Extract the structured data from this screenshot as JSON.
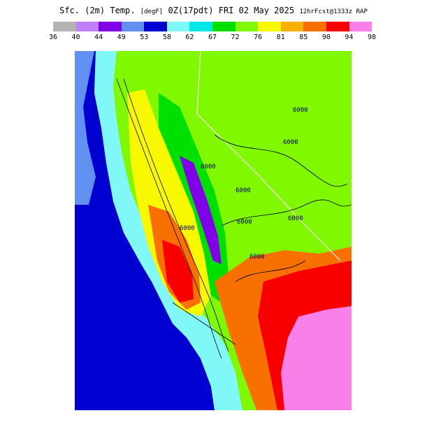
{
  "header": {
    "title": "Sfc. (2m) Temp.",
    "units": "[degF]",
    "valid": "0Z(17pdt) FRI 02 May 2025",
    "forecast": "12hrFcst@1333z RAP"
  },
  "legend": {
    "ticks": [
      "36",
      "40",
      "44",
      "49",
      "53",
      "58",
      "62",
      "67",
      "72",
      "76",
      "81",
      "85",
      "90",
      "94",
      "98"
    ],
    "colors": [
      "#b4b4b4",
      "#c080f8",
      "#8000e8",
      "#6090f0",
      "#0000d0",
      "#80f8f8",
      "#00e8e8",
      "#00e000",
      "#80f800",
      "#f8f800",
      "#f8b000",
      "#f87000",
      "#f80000",
      "#f880e8"
    ]
  },
  "map": {
    "colors": {
      "ocean": "#0000d0",
      "coast": "#80f8f8",
      "cool_green": "#00e000",
      "green": "#80f800",
      "yellow": "#f8f800",
      "orange": "#f87000",
      "red": "#f80000",
      "pink": "#f880e8",
      "purple": "#8000e8",
      "steel": "#6090f0"
    },
    "contour_labels": [
      "6000",
      "6000",
      "6000",
      "6000",
      "6000",
      "6000",
      "6000",
      "6000"
    ]
  }
}
